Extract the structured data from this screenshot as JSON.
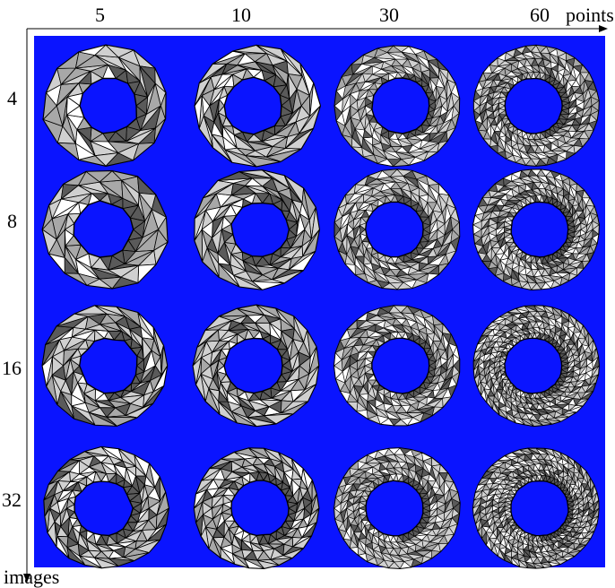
{
  "column_labels": [
    "5",
    "10",
    "30",
    "60"
  ],
  "points_axis_label": "points",
  "row_labels": [
    "4",
    "8",
    "16",
    "32"
  ],
  "images_axis_label": "images",
  "grid": {
    "columns_points": [
      5,
      10,
      30,
      60
    ],
    "rows_images": [
      4,
      8,
      16,
      32
    ]
  },
  "colors": {
    "background": "#0a14ff",
    "mesh_light": "#d0d0d0",
    "mesh_mid": "#a8a8a8",
    "mesh_dark": "#5a5a5a",
    "edge": "#000000"
  }
}
